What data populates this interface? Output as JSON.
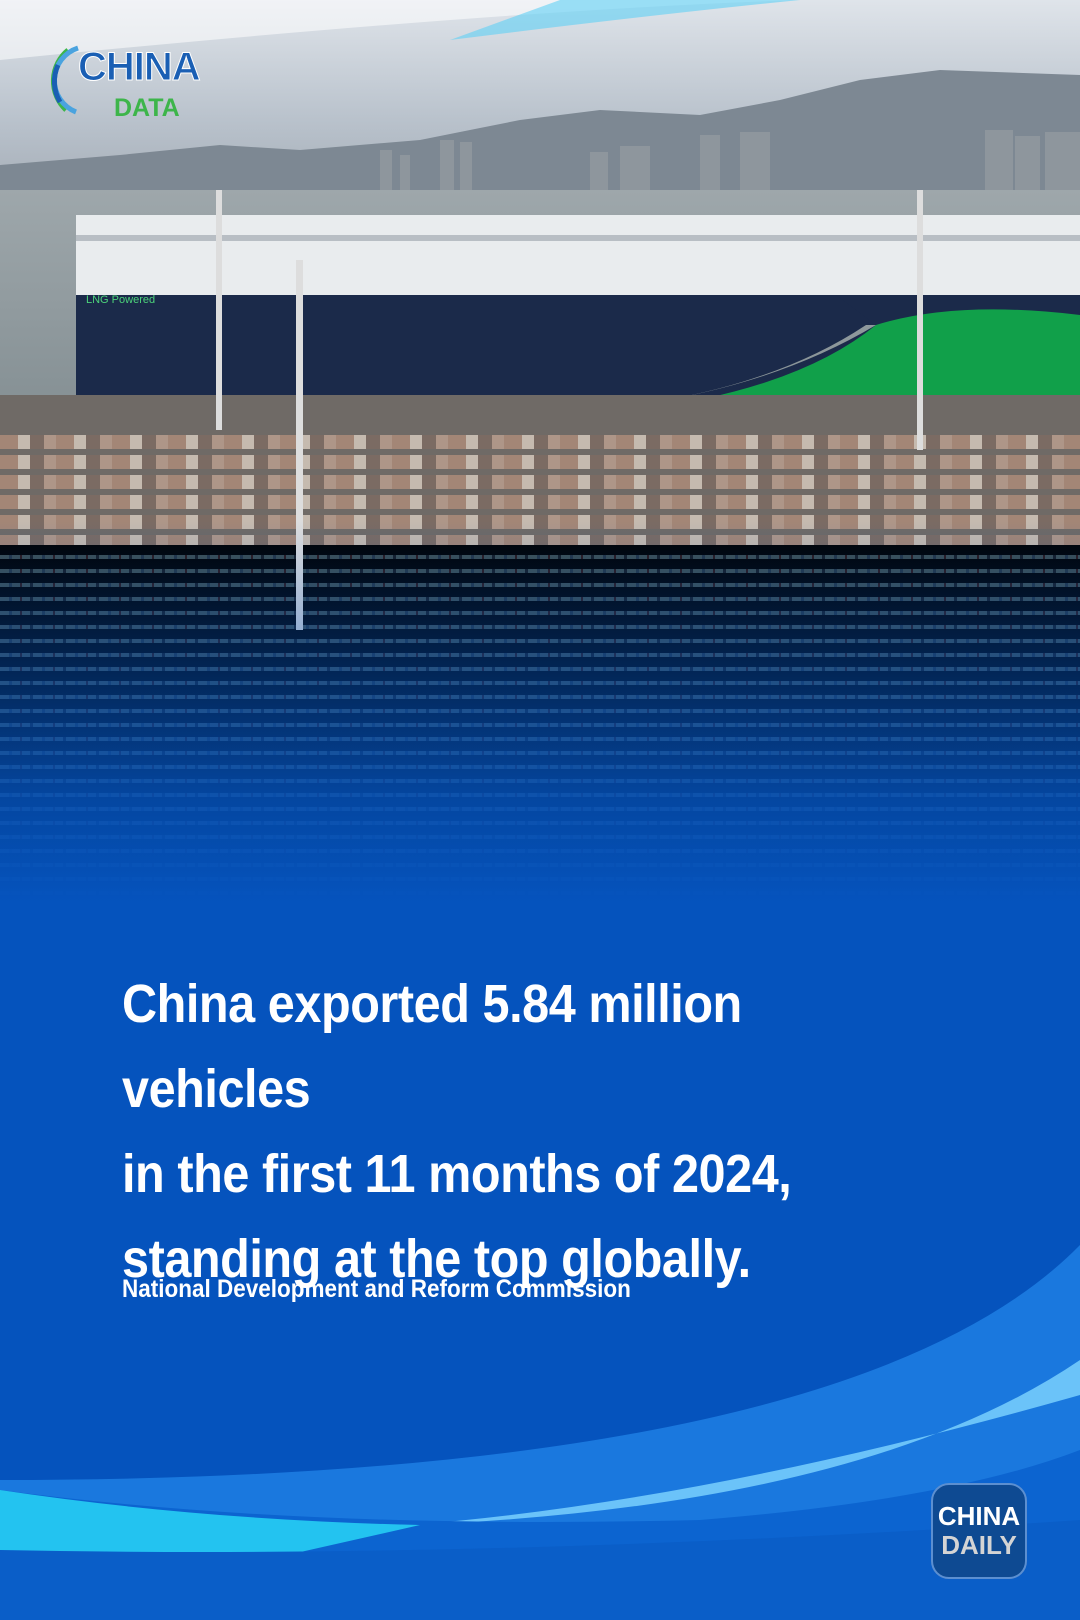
{
  "logo": {
    "brand_top": "CHINA",
    "brand_bottom": "DATA"
  },
  "ship": {
    "hull_label": "LNG Powered"
  },
  "headline": {
    "line1": "China exported 5.84 million vehicles",
    "line2": "in the first 11 months of 2024,",
    "line3": "standing at the top globally."
  },
  "source": "National Development and Reform Commission",
  "publisher_logo": {
    "line1": "CHINA",
    "line2": "DAILY"
  },
  "colors": {
    "background": "#0553bd",
    "accent_cyan": "#22c8f0",
    "logo_green": "#3db54a",
    "logo_blue": "#1a5fb4"
  }
}
